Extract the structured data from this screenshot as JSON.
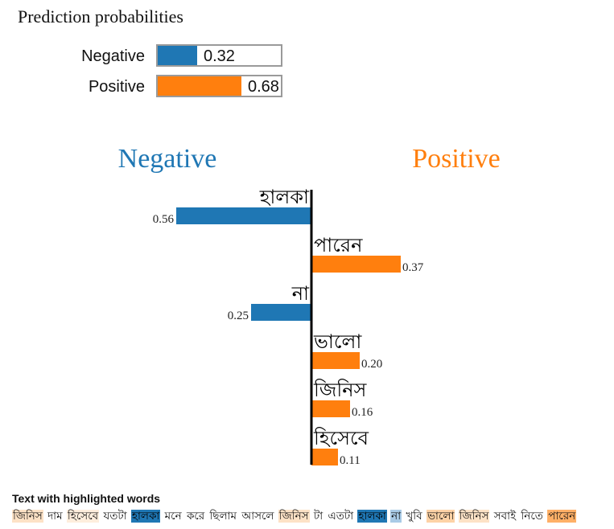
{
  "prediction": {
    "title": "Prediction probabilities",
    "rows": [
      {
        "label": "Negative",
        "value": 0.32,
        "value_text": "0.32",
        "color": "#1f77b4"
      },
      {
        "label": "Positive",
        "value": 0.68,
        "value_text": "0.68",
        "color": "#ff7f0e"
      }
    ]
  },
  "chart_data": {
    "type": "bar",
    "orientation": "horizontal",
    "class_labels": {
      "negative": "Negative",
      "positive": "Positive"
    },
    "colors": {
      "negative": "#1f77b4",
      "positive": "#ff7f0e"
    },
    "features": [
      {
        "word": "হালকা",
        "value": 0.56,
        "value_text": "0.56",
        "side": "negative"
      },
      {
        "word": "পারেন",
        "value": 0.37,
        "value_text": "0.37",
        "side": "positive"
      },
      {
        "word": "না",
        "value": 0.25,
        "value_text": "0.25",
        "side": "negative"
      },
      {
        "word": "ভালো",
        "value": 0.2,
        "value_text": "0.20",
        "side": "positive"
      },
      {
        "word": "জিনিস",
        "value": 0.16,
        "value_text": "0.16",
        "side": "positive"
      },
      {
        "word": "হিসেবে",
        "value": 0.11,
        "value_text": "0.11",
        "side": "positive"
      }
    ]
  },
  "highlighted_text": {
    "title": "Text with highlighted words",
    "tokens": [
      {
        "text": "জিনিস",
        "hl": "#fde2c6"
      },
      {
        "text": "দাম",
        "hl": ""
      },
      {
        "text": "হিসেবে",
        "hl": "#feeedd"
      },
      {
        "text": "যতটা",
        "hl": ""
      },
      {
        "text": "হালকা",
        "hl": "#1f77b4"
      },
      {
        "text": "মনে",
        "hl": ""
      },
      {
        "text": "করে",
        "hl": ""
      },
      {
        "text": "ছিলাম",
        "hl": ""
      },
      {
        "text": "আসলে",
        "hl": ""
      },
      {
        "text": "জিনিস",
        "hl": "#fde2c6"
      },
      {
        "text": "টা",
        "hl": ""
      },
      {
        "text": "এতটা",
        "hl": ""
      },
      {
        "text": "হালকা",
        "hl": "#1f77b4"
      },
      {
        "text": "না",
        "hl": "#a9cbe6"
      },
      {
        "text": "খুবি",
        "hl": ""
      },
      {
        "text": "ভালো",
        "hl": "#fdd2a6"
      },
      {
        "text": "জিনিস",
        "hl": "#fde2c6"
      },
      {
        "text": "সবাই",
        "hl": ""
      },
      {
        "text": "নিতে",
        "hl": ""
      },
      {
        "text": "পারেন",
        "hl": "#ffb067"
      }
    ]
  }
}
